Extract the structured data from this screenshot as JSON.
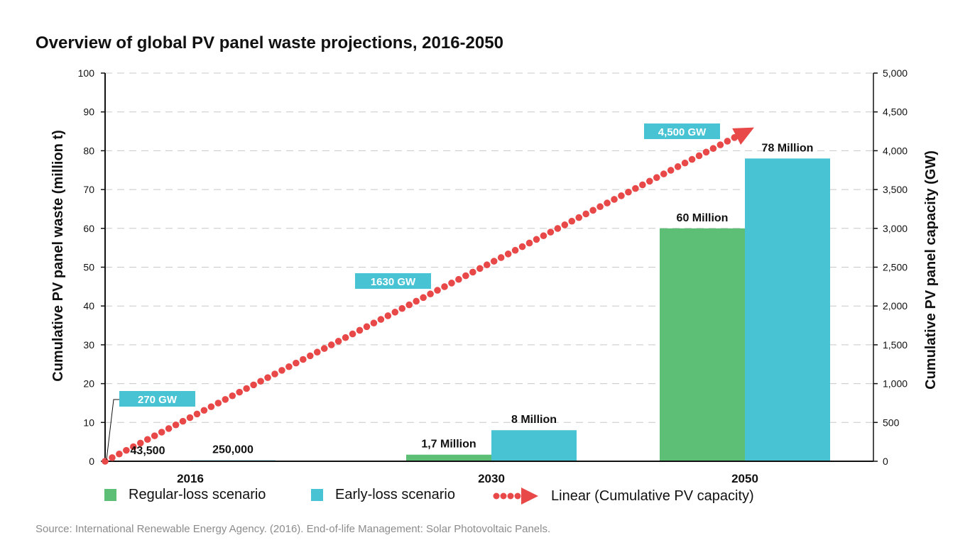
{
  "title": "Overview of global PV panel waste projections, 2016-2050",
  "source": "Source: International Renewable Energy Agency. (2016). End-of-life Management: Solar Photovoltaic Panels.",
  "colors": {
    "regular": "#5dbf75",
    "early": "#47c3d3",
    "capacity": "#e84848",
    "grid": "#c8c8c8",
    "axis": "#111111",
    "callout_text": "#ffffff"
  },
  "chart_data": {
    "type": "bar",
    "categories": [
      "2016",
      "2030",
      "2050"
    ],
    "series": [
      {
        "name": "Regular-loss scenario",
        "values": [
          0.0435,
          1.7,
          60
        ],
        "labels": [
          "43,500",
          "1,7 Million",
          "60 Million"
        ]
      },
      {
        "name": "Early-loss scenario",
        "values": [
          0.25,
          8,
          78
        ],
        "labels": [
          "250,000",
          "8 Million",
          "78 Million"
        ]
      }
    ],
    "line": {
      "name": "Linear (Cumulative PV capacity)",
      "axis": "right",
      "points": [
        {
          "x": "origin",
          "y": 0
        },
        {
          "x": "2050",
          "y": 4300
        }
      ],
      "callouts": [
        "270 GW",
        "1630 GW",
        "4,500 GW"
      ]
    },
    "ylabel": "Cumulative PV panel waste (million t)",
    "y2label": "Cumulative PV panel capacity (GW)",
    "ylim": [
      0,
      100
    ],
    "y2lim": [
      0,
      5000
    ],
    "yticks": [
      "0",
      "10",
      "20",
      "30",
      "40",
      "50",
      "60",
      "70",
      "80",
      "90",
      "100"
    ],
    "y2ticks": [
      "0",
      "500",
      "1,000",
      "1,500",
      "2,000",
      "2,500",
      "3,000",
      "3,500",
      "4,000",
      "4,500",
      "5,000"
    ],
    "grid": true,
    "legend_position": "bottom"
  }
}
